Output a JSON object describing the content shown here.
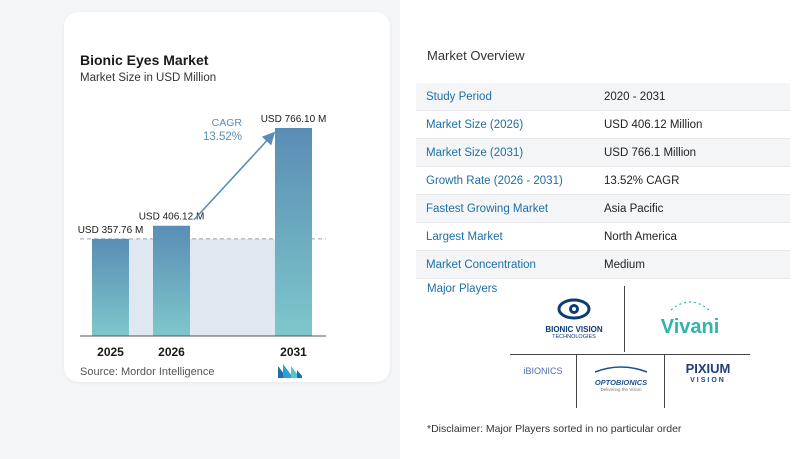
{
  "chart_data": {
    "type": "bar",
    "title": "Bionic Eyes Market",
    "subtitle": "Market Size in USD Million",
    "categories": [
      "2025",
      "2026",
      "2031"
    ],
    "values": [
      357.76,
      406.12,
      766.1
    ],
    "data_labels": [
      "USD 357.76 M",
      "USD 406.12 M",
      "USD 766.10 M"
    ],
    "cagr_label": "CAGR",
    "cagr_value": "13.52%",
    "grid": false,
    "colors": {
      "bar_top": "#5a8db5",
      "bar_bottom": "#7ec7cb",
      "band": "#dfe8f1",
      "arrow": "#5a8db5"
    }
  },
  "source": "Source:  Mordor Intelligence",
  "overview": {
    "title": "Market Overview",
    "rows": [
      {
        "label": "Study Period",
        "value": "2020 - 2031"
      },
      {
        "label": "Market Size (2026)",
        "value": "USD 406.12 Million"
      },
      {
        "label": "Market Size (2031)",
        "value": "USD 766.1 Million"
      },
      {
        "label": "Growth Rate (2026 - 2031)",
        "value": "13.52% CAGR"
      },
      {
        "label": "Fastest Growing Market",
        "value": "Asia Pacific"
      },
      {
        "label": "Largest Market",
        "value": "North America"
      },
      {
        "label": "Market Concentration",
        "value": "Medium"
      }
    ]
  },
  "players": {
    "title": "Major Players",
    "logos": {
      "bionic_vision": {
        "line1": "BIONIC VISION",
        "line2": "TECHNOLOGIES"
      },
      "vivani": "Vivani",
      "ibionics": "iBIONICS",
      "optobionics": {
        "line1": "OPTOBIONICS",
        "line2": "Delivering the Vision"
      },
      "pixium": {
        "line1": "PIXIUM",
        "line2": "VISION"
      }
    }
  },
  "disclaimer": "*Disclaimer: Major Players sorted in no particular order"
}
